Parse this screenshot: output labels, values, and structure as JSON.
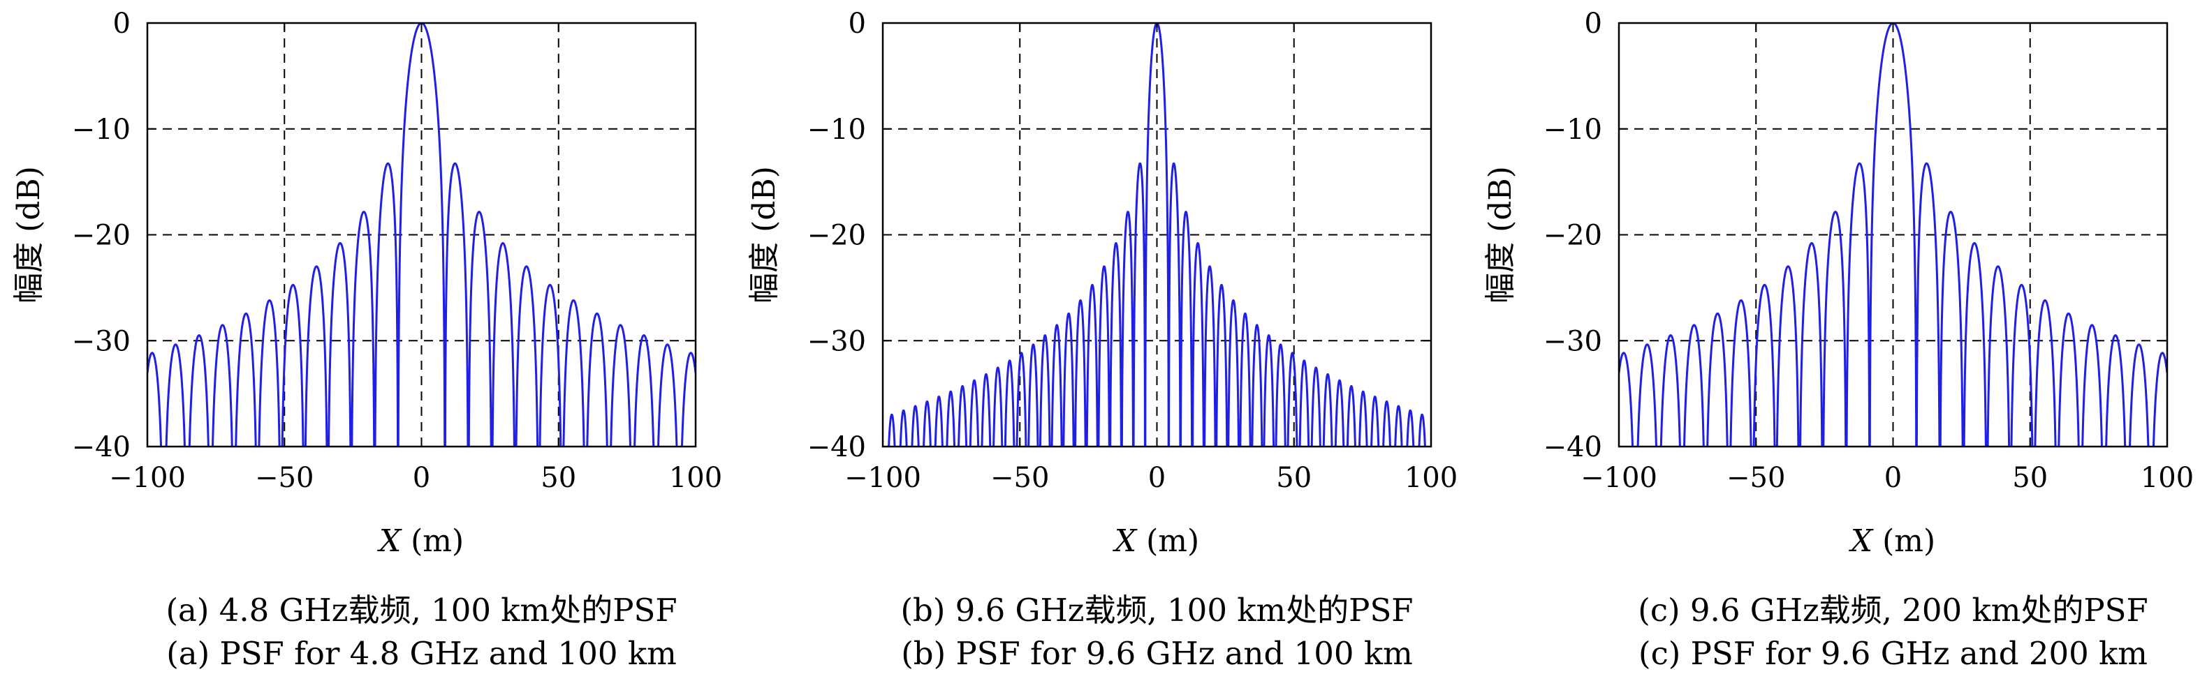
{
  "chart_data": [
    {
      "type": "line",
      "panel": "a",
      "xlabel": "X (m)",
      "ylabel": "幅度 (dB)",
      "xlim": [
        -100,
        100
      ],
      "ylim": [
        -40,
        0
      ],
      "xticks": [
        "−100",
        "−50",
        "0",
        "50",
        "100"
      ],
      "yticks": [
        "0",
        "−10",
        "−20",
        "−30",
        "−40"
      ],
      "grid": "dashed",
      "caption_zh": "(a) 4.8 GHz载频, 100 km处的PSF",
      "caption_en": "(a) PSF for 4.8 GHz and 100 km",
      "color": "#1f1fe6",
      "series": [
        {
          "mainlobe_width_m": 17.1,
          "first_null_spacing_m": 8.55,
          "sidelobe_peaks": {
            "x": [
              12.8,
              21.4,
              29.9,
              38.5,
              47.0,
              55.6,
              64.1,
              72.7,
              81.2,
              89.8,
              98.3
            ],
            "y": [
              -13.3,
              -17.9,
              -20.8,
              -23.0,
              -24.7,
              -26.2,
              -27.5,
              -28.6,
              -29.6,
              -30.5,
              -31.3
            ]
          }
        }
      ]
    },
    {
      "type": "line",
      "panel": "b",
      "xlabel": "X (m)",
      "ylabel": "幅度 (dB)",
      "xlim": [
        -100,
        100
      ],
      "ylim": [
        -40,
        0
      ],
      "xticks": [
        "−100",
        "−50",
        "0",
        "50",
        "100"
      ],
      "yticks": [
        "0",
        "−10",
        "−20",
        "−30",
        "−40"
      ],
      "grid": "dashed",
      "caption_zh": "(b) 9.6 GHz载频, 100 km处的PSF",
      "caption_en": "(b) PSF for 9.6 GHz and 100 km",
      "color": "#1f1fe6",
      "series": [
        {
          "mainlobe_width_m": 8.6,
          "first_null_spacing_m": 4.3,
          "sidelobe_peaks": {
            "x": [
              6.4,
              10.7,
              15.0,
              19.3,
              23.6,
              27.9,
              32.2,
              36.5,
              40.8,
              45.1,
              49.4,
              53.7,
              58.0,
              62.3,
              66.6,
              70.9,
              75.2,
              79.5,
              83.8,
              88.1,
              92.4,
              96.7
            ],
            "y": [
              -13.3,
              -17.9,
              -20.8,
              -23.0,
              -24.7,
              -26.2,
              -27.5,
              -28.6,
              -29.6,
              -30.5,
              -31.3,
              -32.1,
              -32.8,
              -33.5,
              -34.1,
              -34.7,
              -35.2,
              -35.7,
              -36.2,
              -36.7,
              -37.1,
              -37.5
            ]
          }
        }
      ]
    },
    {
      "type": "line",
      "panel": "c",
      "xlabel": "X (m)",
      "ylabel": "幅度 (dB)",
      "xlim": [
        -100,
        100
      ],
      "ylim": [
        -40,
        0
      ],
      "xticks": [
        "−100",
        "−50",
        "0",
        "50",
        "100"
      ],
      "yticks": [
        "0",
        "−10",
        "−20",
        "−30",
        "−40"
      ],
      "grid": "dashed",
      "caption_zh": "(c) 9.6 GHz载频, 200 km处的PSF",
      "caption_en": "(c) PSF for 9.6 GHz and 200 km",
      "color": "#1f1fe6",
      "series": [
        {
          "mainlobe_width_m": 17.1,
          "first_null_spacing_m": 8.55,
          "sidelobe_peaks": {
            "x": [
              12.8,
              21.4,
              29.9,
              38.5,
              47.0,
              55.6,
              64.1,
              72.7,
              81.2,
              89.8,
              98.3
            ],
            "y": [
              -13.3,
              -17.9,
              -20.8,
              -23.0,
              -24.7,
              -26.2,
              -27.5,
              -28.6,
              -29.6,
              -30.5,
              -31.3
            ]
          }
        }
      ]
    }
  ]
}
